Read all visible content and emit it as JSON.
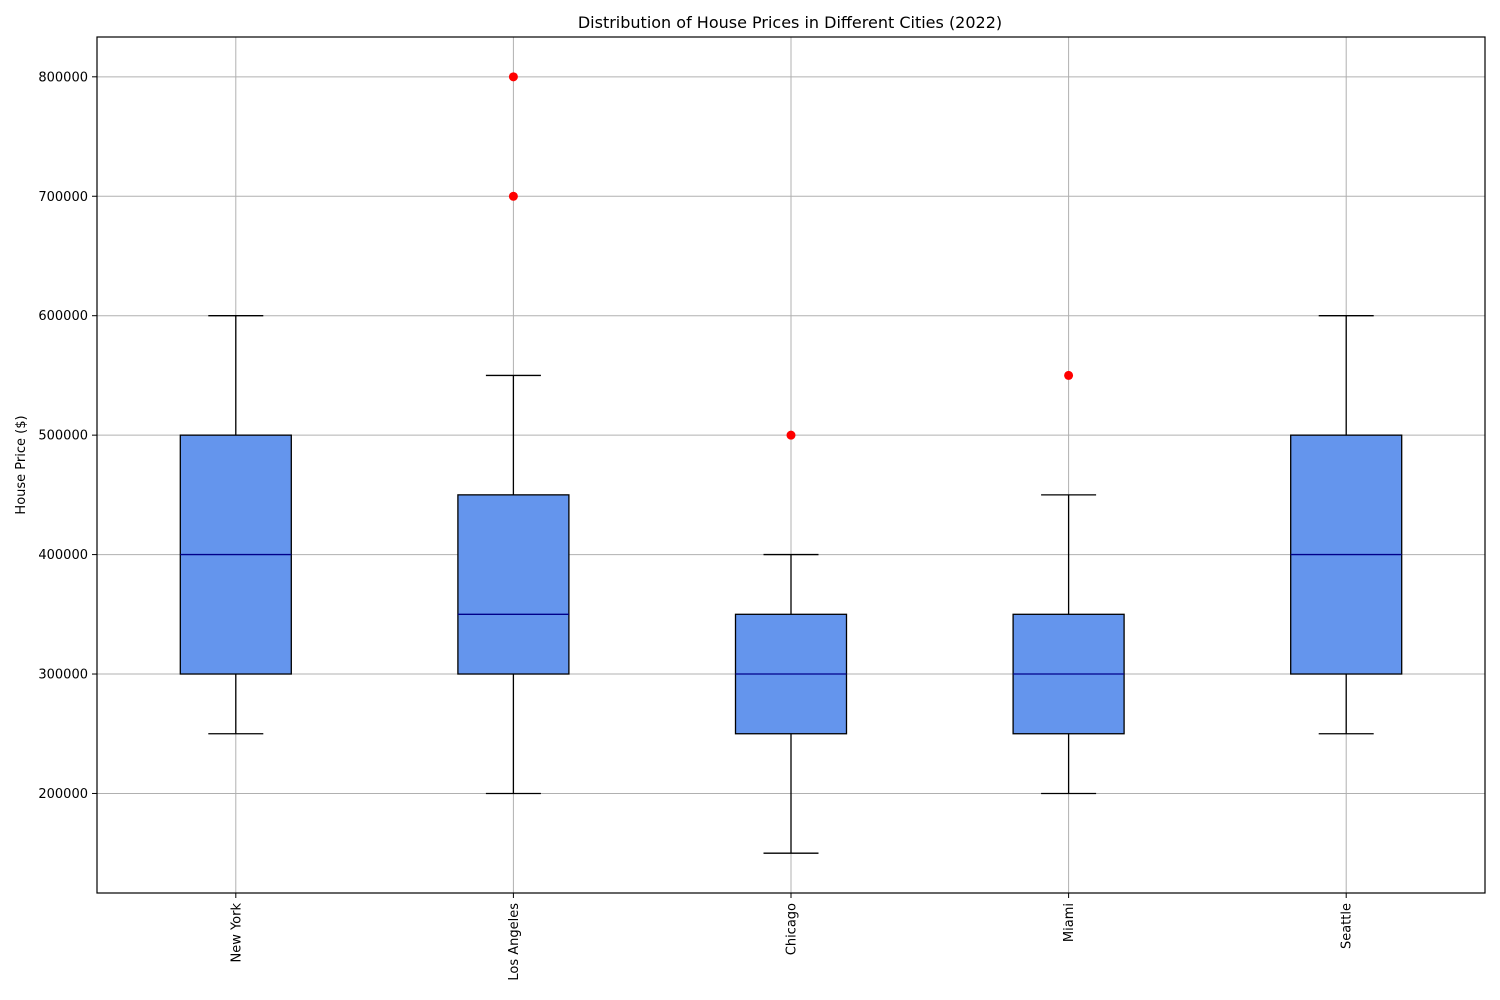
{
  "chart_data": {
    "type": "box",
    "title": "Distribution of House Prices in Different Cities (2022)",
    "xlabel": "",
    "ylabel": "House Price ($)",
    "ylim": [
      116667,
      833333
    ],
    "yticks": [
      200000,
      300000,
      400000,
      500000,
      600000,
      700000,
      800000
    ],
    "grid": true,
    "colors": {
      "box_fill": "#6495ed",
      "median": "#00008b",
      "outlier": "#ff0000",
      "grid": "#b0b0b0"
    },
    "categories": [
      "New York",
      "Los Angeles",
      "Chicago",
      "Miami",
      "Seattle"
    ],
    "boxes": [
      {
        "label": "New York",
        "whisker_low": 250000,
        "q1": 300000,
        "median": 400000,
        "q3": 500000,
        "whisker_high": 600000,
        "outliers": []
      },
      {
        "label": "Los Angeles",
        "whisker_low": 200000,
        "q1": 300000,
        "median": 350000,
        "q3": 450000,
        "whisker_high": 550000,
        "outliers": [
          700000,
          800000
        ]
      },
      {
        "label": "Chicago",
        "whisker_low": 150000,
        "q1": 250000,
        "median": 300000,
        "q3": 350000,
        "whisker_high": 400000,
        "outliers": [
          500000
        ]
      },
      {
        "label": "Miami",
        "whisker_low": 200000,
        "q1": 250000,
        "median": 300000,
        "q3": 350000,
        "whisker_high": 450000,
        "outliers": [
          550000
        ]
      },
      {
        "label": "Seattle",
        "whisker_low": 250000,
        "q1": 300000,
        "median": 400000,
        "q3": 500000,
        "whisker_high": 600000,
        "outliers": []
      }
    ]
  }
}
